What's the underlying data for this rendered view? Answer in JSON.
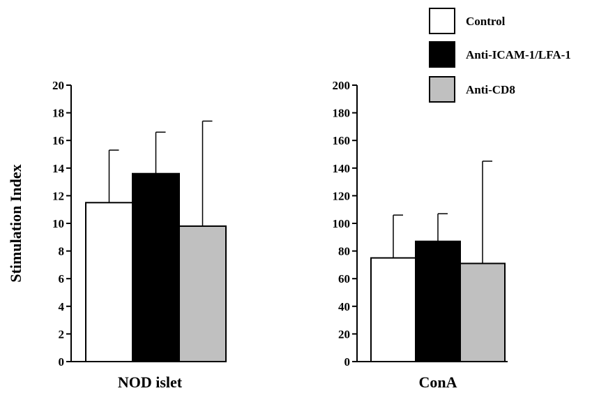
{
  "chart_data": [
    {
      "type": "bar",
      "xlabel": "NOD islet",
      "ylabel": "Stimulation Index",
      "ylim": [
        0,
        20
      ],
      "yticks": [
        0,
        2,
        4,
        6,
        8,
        10,
        12,
        14,
        16,
        18,
        20
      ],
      "series": [
        {
          "name": "Control",
          "value": 11.5,
          "error": 3.8,
          "color": "#ffffff"
        },
        {
          "name": "Anti-ICAM-1/LFA-1",
          "value": 13.6,
          "error": 3.0,
          "color": "#000000"
        },
        {
          "name": "Anti-CD8",
          "value": 9.8,
          "error": 7.6,
          "color": "#c0c0c0"
        }
      ],
      "grid": false
    },
    {
      "type": "bar",
      "xlabel": "ConA",
      "ylabel": "",
      "ylim": [
        0,
        200
      ],
      "yticks": [
        0,
        20,
        40,
        60,
        80,
        100,
        120,
        140,
        160,
        180,
        200
      ],
      "series": [
        {
          "name": "Control",
          "value": 75,
          "error": 31,
          "color": "#ffffff"
        },
        {
          "name": "Anti-ICAM-1/LFA-1",
          "value": 87,
          "error": 20,
          "color": "#000000"
        },
        {
          "name": "Anti-CD8",
          "value": 71,
          "error": 74,
          "color": "#c0c0c0"
        }
      ],
      "grid": false
    }
  ],
  "legend": {
    "placement": "top-right",
    "entries": [
      {
        "label": "Control",
        "color": "#ffffff"
      },
      {
        "label": "Anti-ICAM-1/LFA-1",
        "color": "#000000"
      },
      {
        "label": "Anti-CD8",
        "color": "#c0c0c0"
      }
    ]
  }
}
